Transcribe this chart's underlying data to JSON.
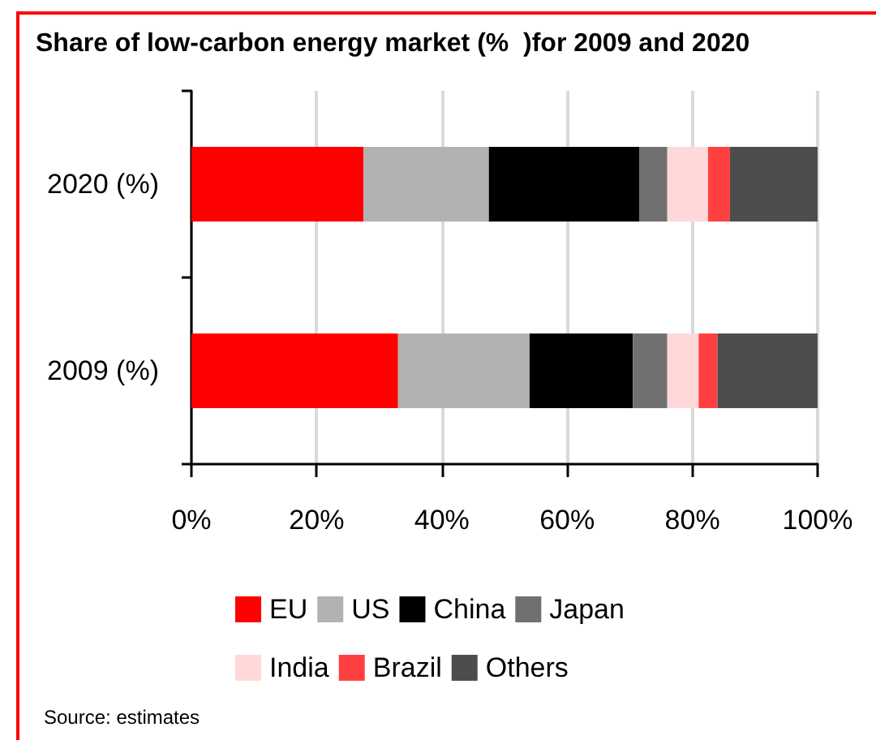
{
  "chart_data": {
    "type": "bar",
    "title": "Share of low-carbon energy market (%  )for 2009 and 2020",
    "categories": [
      "2020 (%)",
      "2009 (%)"
    ],
    "orientation": "horizontal",
    "stacked": true,
    "series": [
      {
        "name": "EU",
        "color": "#ff0000",
        "values": [
          27.5,
          33
        ]
      },
      {
        "name": "US",
        "color": "#b2b2b2",
        "values": [
          20,
          21
        ]
      },
      {
        "name": "China",
        "color": "#000000",
        "values": [
          24,
          16.5
        ]
      },
      {
        "name": "Japan",
        "color": "#707070",
        "values": [
          4.5,
          5.5
        ]
      },
      {
        "name": "India",
        "color": "#ffd9d9",
        "values": [
          6.5,
          5
        ]
      },
      {
        "name": "Brazil",
        "color": "#ff4040",
        "values": [
          3.5,
          3
        ]
      },
      {
        "name": "Others",
        "color": "#4d4d4d",
        "values": [
          14,
          16
        ]
      }
    ],
    "xlim": [
      0,
      100
    ],
    "xticks": [
      {
        "value": 0,
        "label": "0%"
      },
      {
        "value": 20,
        "label": "20%"
      },
      {
        "value": 40,
        "label": "40%"
      },
      {
        "value": 60,
        "label": "60%"
      },
      {
        "value": 80,
        "label": "80%"
      },
      {
        "value": 100,
        "label": "100%"
      }
    ],
    "grid": "x",
    "legend": "bottom",
    "annotations": [
      "Source: estimates"
    ]
  }
}
